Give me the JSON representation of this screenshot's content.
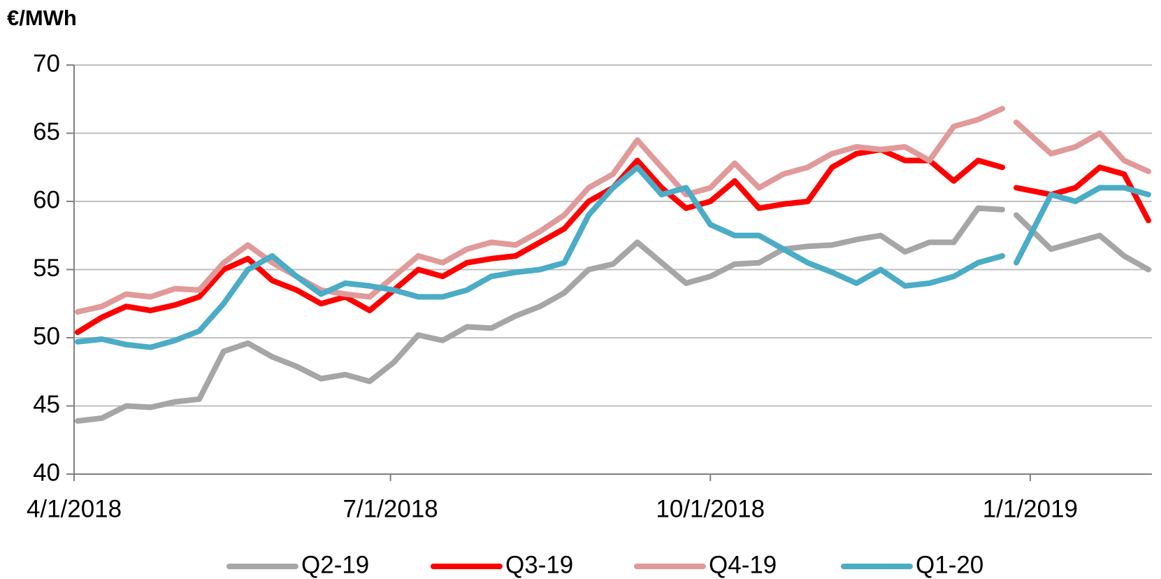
{
  "chart_data": {
    "type": "line",
    "y_label": "€/MWh",
    "x": [
      "2018-04-02",
      "2018-04-09",
      "2018-04-16",
      "2018-04-23",
      "2018-04-30",
      "2018-05-07",
      "2018-05-14",
      "2018-05-21",
      "2018-05-28",
      "2018-06-04",
      "2018-06-11",
      "2018-06-18",
      "2018-06-25",
      "2018-07-02",
      "2018-07-09",
      "2018-07-16",
      "2018-07-23",
      "2018-07-30",
      "2018-08-06",
      "2018-08-13",
      "2018-08-20",
      "2018-08-27",
      "2018-09-03",
      "2018-09-10",
      "2018-09-17",
      "2018-09-24",
      "2018-10-01",
      "2018-10-08",
      "2018-10-15",
      "2018-10-22",
      "2018-10-29",
      "2018-11-05",
      "2018-11-12",
      "2018-11-19",
      "2018-11-26",
      "2018-12-03",
      "2018-12-10",
      "2018-12-17",
      "2018-12-24",
      "2018-12-26",
      "2018-12-28",
      "2019-01-07",
      "2019-01-14",
      "2019-01-21",
      "2019-01-28",
      "2019-02-04"
    ],
    "series": [
      {
        "name": "Q2-19",
        "color": "#a6a6a6",
        "values": [
          43.9,
          44.1,
          45.0,
          44.9,
          45.3,
          45.5,
          49.0,
          49.6,
          48.6,
          47.9,
          47.0,
          47.3,
          46.8,
          48.2,
          50.2,
          49.8,
          50.8,
          50.7,
          51.6,
          52.3,
          53.3,
          55.0,
          55.4,
          57.0,
          55.5,
          54.0,
          54.5,
          55.4,
          55.5,
          56.5,
          56.7,
          56.8,
          57.2,
          57.5,
          56.3,
          57.0,
          57.0,
          59.5,
          59.4,
          null,
          59.0,
          56.5,
          57.0,
          57.5,
          56.0,
          55.0
        ]
      },
      {
        "name": "Q3-19",
        "color": "#ff0000",
        "values": [
          50.4,
          51.5,
          52.3,
          52.0,
          52.4,
          53.0,
          55.0,
          55.8,
          54.2,
          53.5,
          52.5,
          53.0,
          52.0,
          53.5,
          55.0,
          54.5,
          55.5,
          55.8,
          56.0,
          57.0,
          58.0,
          60.0,
          61.0,
          63.0,
          61.0,
          59.5,
          60.0,
          61.5,
          59.5,
          59.8,
          60.0,
          62.5,
          63.5,
          63.8,
          63.0,
          63.0,
          61.5,
          63.0,
          62.5,
          null,
          61.0,
          60.5,
          61.0,
          62.5,
          62.0,
          58.6
        ]
      },
      {
        "name": "Q4-19",
        "color": "#e09a9a",
        "values": [
          51.9,
          52.3,
          53.2,
          53.0,
          53.6,
          53.5,
          55.5,
          56.8,
          55.5,
          54.5,
          53.5,
          53.2,
          53.0,
          54.5,
          56.0,
          55.5,
          56.5,
          57.0,
          56.8,
          57.8,
          59.0,
          61.0,
          62.0,
          64.5,
          62.5,
          60.5,
          61.0,
          62.8,
          61.0,
          62.0,
          62.5,
          63.5,
          64.0,
          63.8,
          64.0,
          63.0,
          65.5,
          66.0,
          66.8,
          null,
          65.8,
          63.5,
          64.0,
          65.0,
          63.0,
          62.2
        ]
      },
      {
        "name": "Q1-20",
        "color": "#4bacc6",
        "values": [
          49.7,
          49.9,
          49.5,
          49.3,
          49.8,
          50.5,
          52.5,
          55.0,
          56.0,
          54.5,
          53.2,
          54.0,
          53.8,
          53.5,
          53.0,
          53.0,
          53.5,
          54.5,
          54.8,
          55.0,
          55.5,
          59.0,
          61.0,
          62.5,
          60.5,
          61.0,
          58.3,
          57.5,
          57.5,
          56.5,
          55.5,
          54.8,
          54.0,
          55.0,
          53.8,
          54.0,
          54.5,
          55.5,
          56.0,
          null,
          55.5,
          60.5,
          60.0,
          61.0,
          61.0,
          60.5
        ]
      }
    ],
    "xlim": [
      "2018-04-01",
      "2019-02-05"
    ],
    "xticks": [
      {
        "value": "2018-04-01",
        "label": "4/1/2018"
      },
      {
        "value": "2018-07-01",
        "label": "7/1/2018"
      },
      {
        "value": "2018-10-01",
        "label": "10/1/2018"
      },
      {
        "value": "2019-01-01",
        "label": "1/1/2019"
      }
    ],
    "ylim": [
      40,
      70
    ],
    "yticks": [
      40,
      45,
      50,
      55,
      60,
      65,
      70
    ],
    "grid": true,
    "legend": "bottom"
  }
}
